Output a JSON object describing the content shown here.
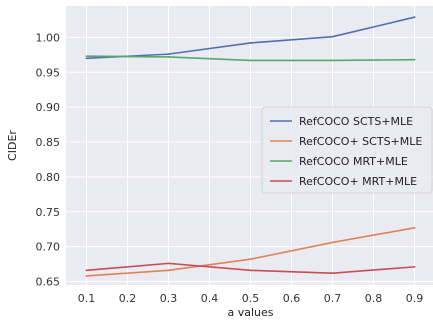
{
  "chart_data": {
    "type": "line",
    "title": "",
    "xlabel": "a values",
    "ylabel": "CIDEr",
    "x": [
      0.1,
      0.3,
      0.5,
      0.7,
      0.9
    ],
    "xlim": [
      0.05,
      0.95
    ],
    "ylim": [
      0.645,
      1.045
    ],
    "xticks": [
      0.1,
      0.2,
      0.3,
      0.4,
      0.5,
      0.6,
      0.7,
      0.8,
      0.9
    ],
    "yticks": [
      0.65,
      0.7,
      0.75,
      0.8,
      0.85,
      0.9,
      0.95,
      1.0
    ],
    "grid": true,
    "legend_position": "center-right",
    "background": "#eaeaf2",
    "series": [
      {
        "name": "RefCOCO SCTS+MLE",
        "color": "#4c72b0",
        "values": [
          0.97,
          0.976,
          0.992,
          1.001,
          1.029
        ]
      },
      {
        "name": "RefCOCO+ SCTS+MLE",
        "color": "#dd8452",
        "values": [
          0.658,
          0.666,
          0.682,
          0.706,
          0.727
        ]
      },
      {
        "name": "RefCOCO MRT+MLE",
        "color": "#55a868",
        "values": [
          0.973,
          0.972,
          0.967,
          0.967,
          0.968
        ]
      },
      {
        "name": "RefCOCO+ MRT+MLE",
        "color": "#c44e52",
        "values": [
          0.666,
          0.676,
          0.666,
          0.662,
          0.671
        ]
      }
    ]
  }
}
